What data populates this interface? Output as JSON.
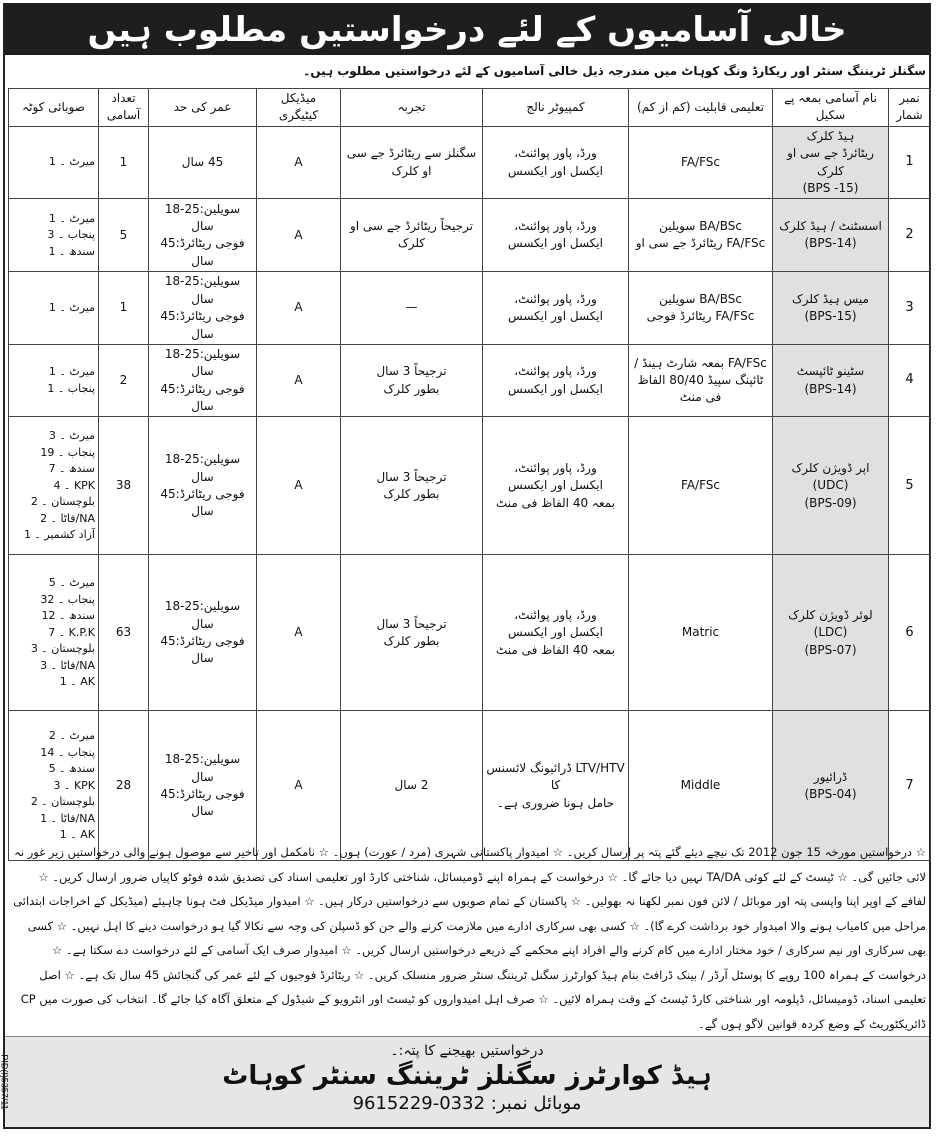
{
  "title": "خالی آسامیوں کے لئے درخواستیں مطلوب ہیں",
  "intro": "سگنلز ٹریننگ سنٹر اور ریکارڈ ونگ کوہاٹ میں مندرجہ ذیل خالی آسامیوں کے لئے درخواستیں مطلوب ہیں۔",
  "headers": [
    "نمبر شمار",
    "نام آسامی بمعہ پے سکیل",
    "تعلیمی قابلیت (کم از کم)",
    "کمپیوٹر نالج",
    "تجربہ",
    "میڈیکل کیٹیگری",
    "عمر کی حد",
    "تعداد آسامی",
    "صوبائی کوٹہ"
  ],
  "rows": [
    {
      "sn": "1",
      "post": [
        "ہیڈ کلرک",
        "ریٹائرڈ جے سی او کلرک",
        "(BPS -15)"
      ],
      "edu": [
        "FA/FSc"
      ],
      "computer": [
        "ورڈ، پاور پوائنٹ،",
        "ایکسل اور ایکسس"
      ],
      "exp": [
        "سگنلز سے ریٹائرڈ جے سی او کلرک"
      ],
      "medical": "A",
      "age": [
        "45 سال"
      ],
      "count": "1",
      "quota": [
        "میرٹ ۔ 1"
      ]
    },
    {
      "sn": "2",
      "post": [
        "اسسٹنٹ / ہیڈ کلرک",
        "(BPS-14)"
      ],
      "edu": [
        "BA/BSc سویلین",
        "FA/FSc ریٹائرڈ جے سی او"
      ],
      "computer": [
        "ورڈ، پاور پوائنٹ،",
        "ایکسل اور ایکسس"
      ],
      "exp": [
        "ترجیحاً ریٹائرڈ جے سی او کلرک"
      ],
      "medical": "A",
      "age": [
        "سویلین:25-18 سال",
        "فوجی ریٹائرڈ:45 سال"
      ],
      "count": "5",
      "quota": [
        "میرٹ ۔ 1",
        "پنجاب ۔ 3",
        "سندھ ۔ 1"
      ]
    },
    {
      "sn": "3",
      "post": [
        "میس ہیڈ کلرک",
        "(BPS-15)"
      ],
      "edu": [
        "BA/BSc سویلین",
        "FA/FSc ریٹائرڈ فوجی"
      ],
      "computer": [
        "ورڈ، پاور پوائنٹ،",
        "ایکسل اور ایکسس"
      ],
      "exp": [
        "—"
      ],
      "medical": "A",
      "age": [
        "سویلین:25-18 سال",
        "فوجی ریٹائرڈ:45 سال"
      ],
      "count": "1",
      "quota": [
        "میرٹ ۔ 1"
      ]
    },
    {
      "sn": "4",
      "post": [
        "سٹینو ٹائپسٹ",
        "(BPS-14)"
      ],
      "edu": [
        "FA/FSc بمعہ شارٹ ہینڈ /",
        "ٹائپنگ سپیڈ 80/40 الفاظ فی منٹ"
      ],
      "computer": [
        "ورڈ، پاور پوائنٹ،",
        "ایکسل اور ایکسس"
      ],
      "exp": [
        "ترجیحاً 3 سال",
        "بطور کلرک"
      ],
      "medical": "A",
      "age": [
        "سویلین:25-18 سال",
        "فوجی ریٹائرڈ:45 سال"
      ],
      "count": "2",
      "quota": [
        "میرٹ ۔ 1",
        "پنجاب ۔ 1"
      ]
    },
    {
      "sn": "5",
      "post": [
        "اپر ڈویژن کلرک",
        "(UDC)",
        "(BPS-09)"
      ],
      "edu": [
        "FA/FSc"
      ],
      "computer": [
        "ورڈ، پاور پوائنٹ،",
        "ایکسل اور ایکسس",
        "بمعہ 40 الفاظ فی منٹ"
      ],
      "exp": [
        "ترجیحاً 3 سال",
        "بطور کلرک"
      ],
      "medical": "A",
      "age": [
        "سویلین:25-18 سال",
        "فوجی ریٹائرڈ:45 سال"
      ],
      "count": "38",
      "quota": [
        "میرٹ ۔ 3",
        "پنجاب ۔ 19",
        "سندھ ۔ 7",
        "KPK ۔ 4",
        "بلوچستان ۔ 2",
        "NA/فاٹا ۔ 2",
        "آزاد کشمیر ۔ 1"
      ]
    },
    {
      "sn": "6",
      "post": [
        "لوئر ڈویژن کلرک",
        "(LDC)",
        "(BPS-07)"
      ],
      "edu": [
        "Matric"
      ],
      "computer": [
        "ورڈ، پاور پوائنٹ،",
        "ایکسل اور ایکسس",
        "بمعہ 40 الفاظ فی منٹ"
      ],
      "exp": [
        "ترجیحاً 3 سال",
        "بطور کلرک"
      ],
      "medical": "A",
      "age": [
        "سویلین:25-18 سال",
        "فوجی ریٹائرڈ:45 سال"
      ],
      "count": "63",
      "quota": [
        "میرٹ ۔ 5",
        "پنجاب ۔ 32",
        "سندھ ۔ 12",
        "K.P.K ۔ 7",
        "بلوچستان ۔ 3",
        "NA/فاٹا ۔ 3",
        "AK ۔ 1"
      ]
    },
    {
      "sn": "7",
      "post": [
        "ڈرائیور",
        "(BPS-04)"
      ],
      "edu": [
        "Middle"
      ],
      "computer": [
        "LTV/HTV ڈرائیونگ لائسنس کا",
        "حامل ہونا ضروری ہے۔"
      ],
      "exp": [
        "2 سال"
      ],
      "medical": "A",
      "age": [
        "سویلین:25-18 سال",
        "فوجی ریٹائرڈ:45 سال"
      ],
      "count": "28",
      "quota": [
        "میرٹ ۔ 2",
        "پنجاب ۔ 14",
        "سندھ ۔ 5",
        "KPK ۔ 3",
        "بلوچستان ۔ 2",
        "NA/فاٹا ۔ 1",
        "AK ۔ 1"
      ]
    }
  ],
  "notes": "☆ درخواستیں مورخہ 15 جون 2012 تک نیچے دیئے گئے پتہ پر ارسال کریں۔ ☆ امیدوار پاکستانی شہری (مرد / عورت) ہوں۔ ☆ نامکمل اور تاخیر سے موصول ہونے والی درخواستیں زیر غور نہ لائی جائیں گی۔ ☆ ٹیسٹ کے لئے کوئی TA/DA نہیں دیا جائے گا۔ ☆ درخواست کے ہمراہ اپنے ڈومیسائل، شناختی کارڈ اور تعلیمی اسناد کی تصدیق شدہ فوٹو کاپیاں ضرور ارسال کریں۔ ☆ لفافے کے اوپر اپنا واپسی پتہ اور موبائل / لائن فون نمبر لکھنا نہ بھولیں۔ ☆ پاکستان کے تمام صوبوں سے درخواستیں درکار ہیں۔ ☆ امیدوار میڈیکل فٹ ہونا چاہیئے (میڈیکل کے اخراجات ابتدائی مراحل میں کامیاب ہونے والا امیدوار خود برداشت کرے گا)۔ ☆ کسی بھی سرکاری ادارے میں ملازمت کرنے والے جن کو ڈسپلن کی وجہ سے نکالا گیا ہو درخواست دینے کا اہل نہیں۔ ☆ کسی بھی سرکاری اور نیم سرکاری / خود مختار ادارے میں کام کرنے والے افراد اپنے محکمے کے ذریعے درخواستیں ارسال کریں۔ ☆ امیدوار صرف ایک آسامی کے لئے درخواست دے سکتا ہے۔ ☆ درخواست کے ہمراہ 100 روپے کا پوسٹل آرڈر / بینک ڈرافٹ بنام ہیڈ کوارٹرز سگنل ٹریننگ سنٹر ضرور منسلک کریں۔ ☆ ریٹائرڈ فوجیوں کے لئے عمر کی گنجائش 45 سال تک ہے۔ ☆ اصل تعلیمی اسناد، ڈومیسائل، ڈپلومہ اور شناختی کارڈ ٹیسٹ کے وقت ہمراہ لائیں۔ ☆ صرف اہل امیدواروں کو ٹیسٹ اور انٹرویو کے شیڈول کے متعلق آگاہ کیا جائے گا۔ انتخاب کی صورت میں CP ڈائریکٹوریٹ کے وضع کردہ قوانین لاگو ہوں گے۔",
  "footer": {
    "label": "درخواستیں بھیجنے کا پتہ:۔",
    "address": "ہیڈ کوارٹرز سگنلز ٹریننگ سنٹر کوہاٹ",
    "mobile": "موبائل نمبر: 0332-9615229",
    "pid": "PID(I)5357/11"
  }
}
